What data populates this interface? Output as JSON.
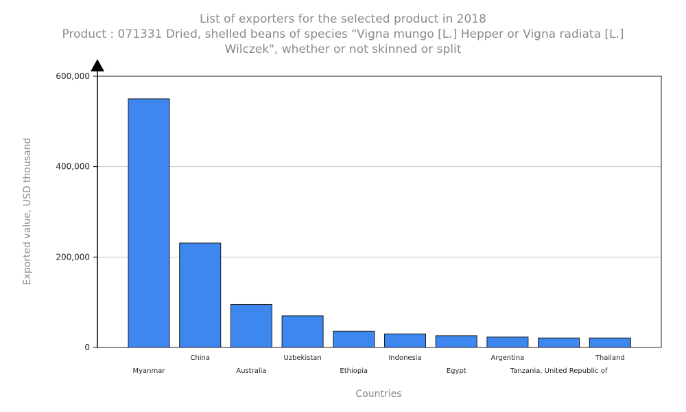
{
  "chart_data": {
    "type": "bar",
    "title_lines": [
      "List of exporters for the selected product in 2018",
      "Product : 071331 Dried, shelled beans of species \"Vigna mungo [L.] Hepper or Vigna radiata [L.]",
      "Wilczek\", whether or not skinned or split"
    ],
    "xlabel": "Countries",
    "ylabel": "Exported value, USD thousand",
    "ylim": [
      0,
      600000
    ],
    "yticks": [
      0,
      200000,
      400000,
      600000
    ],
    "ytick_labels": [
      "0",
      "200,000",
      "400,000",
      "600,000"
    ],
    "grid": true,
    "categories": [
      "Myanmar",
      "China",
      "Australia",
      "Uzbekistan",
      "Ethiopia",
      "Indonesia",
      "Egypt",
      "Argentina",
      "Tanzania, United Republic of",
      "Thailand"
    ],
    "values": [
      550000,
      231000,
      95000,
      70000,
      36000,
      30000,
      26000,
      23000,
      21000,
      21000
    ],
    "bar_color": "#3d87ef"
  }
}
